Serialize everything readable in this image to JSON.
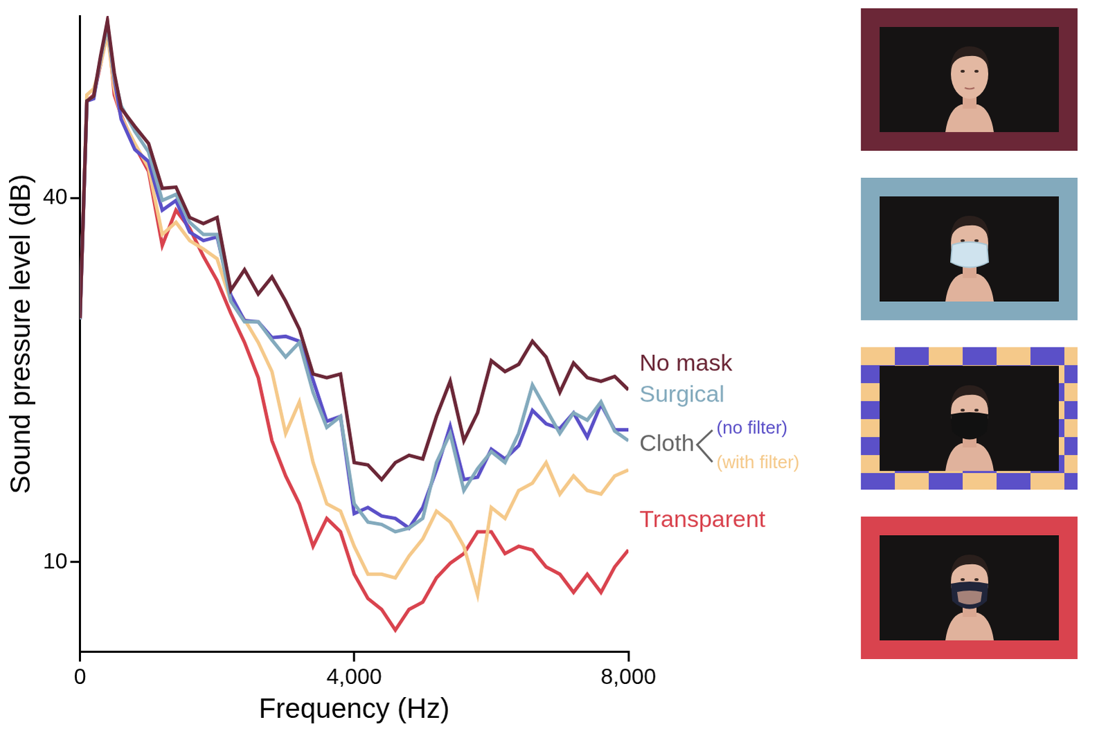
{
  "chart_data": {
    "type": "line",
    "x_label": "Frequency (Hz)",
    "y_label": "Sound pressure level (dB)",
    "xlim": [
      0,
      8000
    ],
    "xticks": [
      0,
      4000,
      8000
    ],
    "ylim": [
      2.6,
      55
    ],
    "yticks": [
      10,
      40
    ],
    "grid": false,
    "annotations": [
      {
        "text": "Cloth"
      }
    ],
    "x": [
      0,
      100,
      200,
      300,
      400,
      500,
      600,
      800,
      1000,
      1200,
      1400,
      1600,
      1800,
      2000,
      2200,
      2400,
      2600,
      2800,
      3000,
      3200,
      3400,
      3600,
      3800,
      4000,
      4200,
      4400,
      4600,
      4800,
      5000,
      5200,
      5400,
      5600,
      5800,
      6000,
      6200,
      6400,
      6600,
      6800,
      7000,
      7200,
      7400,
      7600,
      7800,
      8000
    ],
    "series": [
      {
        "name": "No mask",
        "color": "#6b2737",
        "values": [
          30.1,
          48.0,
          48.4,
          51.7,
          54.6,
          50.3,
          47.4,
          45.9,
          44.5,
          40.8,
          40.9,
          38.4,
          37.9,
          38.4,
          32.4,
          34.1,
          32.1,
          33.5,
          31.5,
          29.2,
          25.5,
          25.2,
          25.5,
          18.2,
          18.0,
          16.8,
          18.2,
          18.8,
          18.5,
          22.0,
          24.9,
          20.0,
          22.3,
          26.6,
          25.7,
          26.3,
          28.2,
          26.9,
          24.0,
          26.4,
          25.2,
          24.9,
          25.3,
          24.2
        ]
      },
      {
        "name": "Surgical",
        "color": "#83aabd",
        "values": [
          30.0,
          48.0,
          48.4,
          51.5,
          54.2,
          50.0,
          47.6,
          45.5,
          43.8,
          39.8,
          40.3,
          38.0,
          37.0,
          37.0,
          31.5,
          29.8,
          29.8,
          28.3,
          26.9,
          28.1,
          24.0,
          21.1,
          22.0,
          14.8,
          13.3,
          13.1,
          12.5,
          12.8,
          13.6,
          18.2,
          20.6,
          15.9,
          17.7,
          19.1,
          18.2,
          20.6,
          24.6,
          22.6,
          20.6,
          22.3,
          21.7,
          23.2,
          20.8,
          20.0
        ]
      },
      {
        "name": "(no filter)",
        "color": "#5b50c8",
        "values": [
          30.0,
          48.0,
          48.2,
          51.5,
          54.3,
          49.8,
          46.5,
          44.0,
          43.0,
          39.0,
          39.8,
          37.2,
          36.5,
          36.8,
          32.0,
          29.9,
          29.8,
          28.5,
          28.6,
          28.2,
          25.0,
          21.6,
          22.0,
          14.0,
          14.5,
          13.8,
          13.6,
          12.8,
          14.5,
          17.6,
          21.2,
          16.8,
          17.0,
          19.3,
          18.5,
          19.6,
          22.5,
          21.4,
          21.0,
          22.3,
          20.3,
          23.0,
          20.9,
          20.9
        ]
      },
      {
        "name": "(with filter)",
        "color": "#f5c98a",
        "values": [
          30.0,
          48.5,
          49.0,
          51.0,
          53.5,
          49.0,
          46.7,
          44.5,
          42.5,
          37.0,
          38.0,
          36.5,
          35.8,
          35.0,
          31.5,
          30.0,
          28.1,
          25.7,
          20.6,
          23.2,
          18.2,
          14.8,
          14.2,
          11.3,
          9.0,
          9.0,
          8.7,
          10.5,
          11.9,
          14.2,
          13.3,
          11.3,
          7.3,
          14.5,
          13.6,
          15.9,
          16.5,
          18.2,
          15.6,
          17.1,
          15.9,
          15.6,
          17.1,
          17.6
        ]
      },
      {
        "name": "Transparent",
        "color": "#d9434e",
        "values": [
          30.0,
          48.0,
          48.5,
          51.0,
          54.5,
          48.5,
          46.8,
          44.3,
          42.2,
          36.1,
          39.0,
          37.5,
          35.2,
          33.2,
          30.5,
          28.1,
          25.2,
          20.0,
          17.1,
          14.8,
          11.3,
          13.6,
          12.5,
          9.0,
          7.0,
          6.1,
          4.4,
          6.1,
          6.7,
          8.7,
          9.9,
          10.7,
          12.5,
          12.5,
          10.7,
          11.3,
          11.0,
          9.6,
          9.0,
          7.5,
          9.0,
          7.5,
          9.6,
          11.0
        ]
      }
    ]
  }
}
